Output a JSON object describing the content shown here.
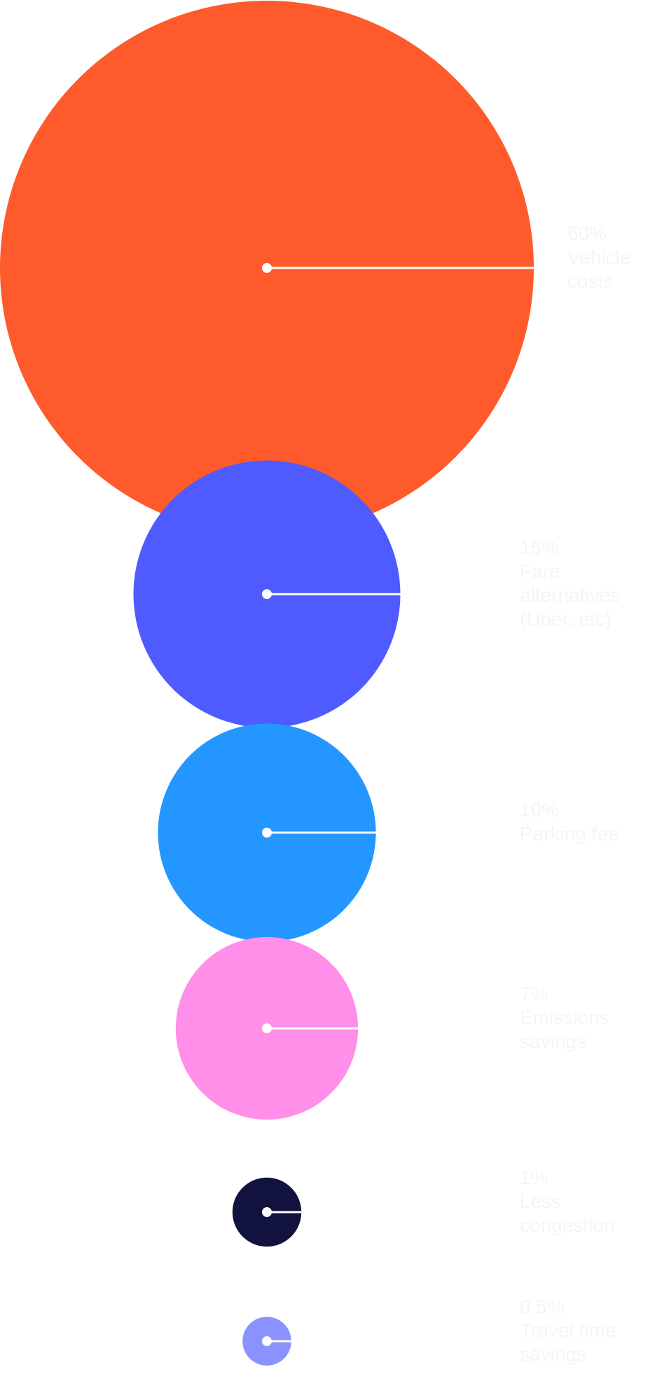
{
  "chart_data": {
    "type": "bubble",
    "title": "",
    "legend": "none",
    "label_color": "#f5f5f5",
    "series": [
      {
        "label": [
          "60%",
          "Vehicle",
          "costs"
        ],
        "value": 60,
        "color": "#ff5a2b"
      },
      {
        "label": [
          "15%",
          "Fare",
          "alternatives",
          "(Uber, etc)"
        ],
        "value": 15,
        "color": "#4f5bff"
      },
      {
        "label": [
          "10%",
          "Parking fee"
        ],
        "value": 10,
        "color": "#2496ff"
      },
      {
        "label": [
          "7%",
          "Emissions",
          "savings"
        ],
        "value": 7,
        "color": "#ff8fe8"
      },
      {
        "label": [
          "1%",
          "Less",
          "congestion"
        ],
        "value": 1,
        "color": "#12123f"
      },
      {
        "label": [
          "0.5%",
          "Travel time",
          "savings"
        ],
        "value": 0.5,
        "color": "#8b92ff"
      }
    ]
  }
}
